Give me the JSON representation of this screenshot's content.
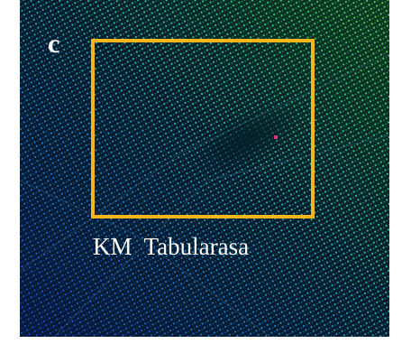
{
  "image": {
    "panel_label": "c",
    "caption": "KM  Tabularasa"
  }
}
